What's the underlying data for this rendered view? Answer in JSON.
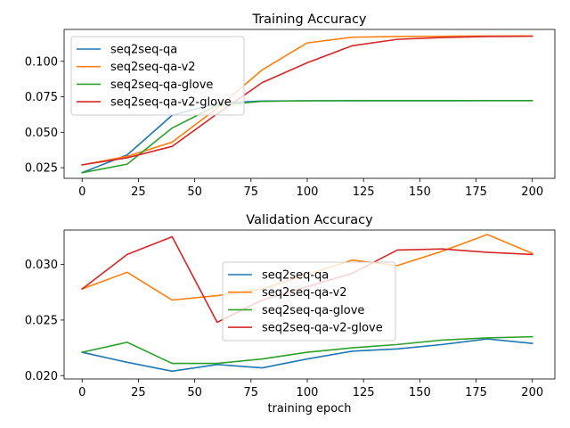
{
  "chart_data": [
    {
      "type": "line",
      "title": "Training Accuracy",
      "xlabel": "",
      "ylabel": "",
      "xlim": [
        -8,
        210
      ],
      "ylim": [
        0.0175,
        0.1225
      ],
      "xticks": [
        0,
        25,
        50,
        75,
        100,
        125,
        150,
        175,
        200
      ],
      "yticks": [
        0.025,
        0.05,
        0.075,
        0.1
      ],
      "ytick_labels": [
        "0.025",
        "0.050",
        "0.075",
        "0.100"
      ],
      "x": [
        0,
        20,
        40,
        60,
        80,
        100,
        120,
        140,
        160,
        180,
        200
      ],
      "legend_loc": "upper-left",
      "series": [
        {
          "name": "seq2seq-qa",
          "color": "#1f77b4",
          "values": [
            0.0215,
            0.034,
            0.062,
            0.0705,
            0.072,
            0.0722,
            0.0722,
            0.0722,
            0.0722,
            0.0723,
            0.0723
          ]
        },
        {
          "name": "seq2seq-qa-v2",
          "color": "#ff7f0e",
          "values": [
            0.027,
            0.033,
            0.043,
            0.067,
            0.094,
            0.113,
            0.117,
            0.1175,
            0.1177,
            0.1178,
            0.1179
          ]
        },
        {
          "name": "seq2seq-qa-glove",
          "color": "#2ca02c",
          "values": [
            0.0215,
            0.0275,
            0.053,
            0.069,
            0.0718,
            0.0722,
            0.0723,
            0.0723,
            0.0723,
            0.0723,
            0.0723
          ]
        },
        {
          "name": "seq2seq-qa-v2-glove",
          "color": "#d62728",
          "values": [
            0.027,
            0.032,
            0.04,
            0.063,
            0.085,
            0.099,
            0.111,
            0.1155,
            0.1168,
            0.1175,
            0.1177
          ]
        }
      ]
    },
    {
      "type": "line",
      "title": "Validation Accuracy",
      "xlabel": "training epoch",
      "ylabel": "",
      "xlim": [
        -8,
        210
      ],
      "ylim": [
        0.0197,
        0.0331
      ],
      "xticks": [
        0,
        25,
        50,
        75,
        100,
        125,
        150,
        175,
        200
      ],
      "yticks": [
        0.02,
        0.025,
        0.03
      ],
      "ytick_labels": [
        "0.020",
        "0.025",
        "0.030"
      ],
      "x": [
        0,
        20,
        40,
        60,
        80,
        100,
        120,
        140,
        160,
        180,
        200
      ],
      "legend_loc": "center",
      "series": [
        {
          "name": "seq2seq-qa",
          "color": "#1f77b4",
          "values": [
            0.0221,
            0.0212,
            0.0204,
            0.021,
            0.0207,
            0.0215,
            0.0222,
            0.0224,
            0.0228,
            0.0233,
            0.0229
          ]
        },
        {
          "name": "seq2seq-qa-v2",
          "color": "#ff7f0e",
          "values": [
            0.0278,
            0.0293,
            0.0268,
            0.0272,
            0.0278,
            0.0291,
            0.0304,
            0.0299,
            0.0312,
            0.0327,
            0.031
          ]
        },
        {
          "name": "seq2seq-qa-glove",
          "color": "#2ca02c",
          "values": [
            0.0221,
            0.023,
            0.0211,
            0.0211,
            0.0215,
            0.0221,
            0.0225,
            0.0228,
            0.0232,
            0.0234,
            0.0235
          ]
        },
        {
          "name": "seq2seq-qa-v2-glove",
          "color": "#d62728",
          "values": [
            0.0278,
            0.0309,
            0.0325,
            0.0248,
            0.0268,
            0.028,
            0.0292,
            0.0313,
            0.0314,
            0.0311,
            0.0309
          ]
        }
      ]
    }
  ]
}
